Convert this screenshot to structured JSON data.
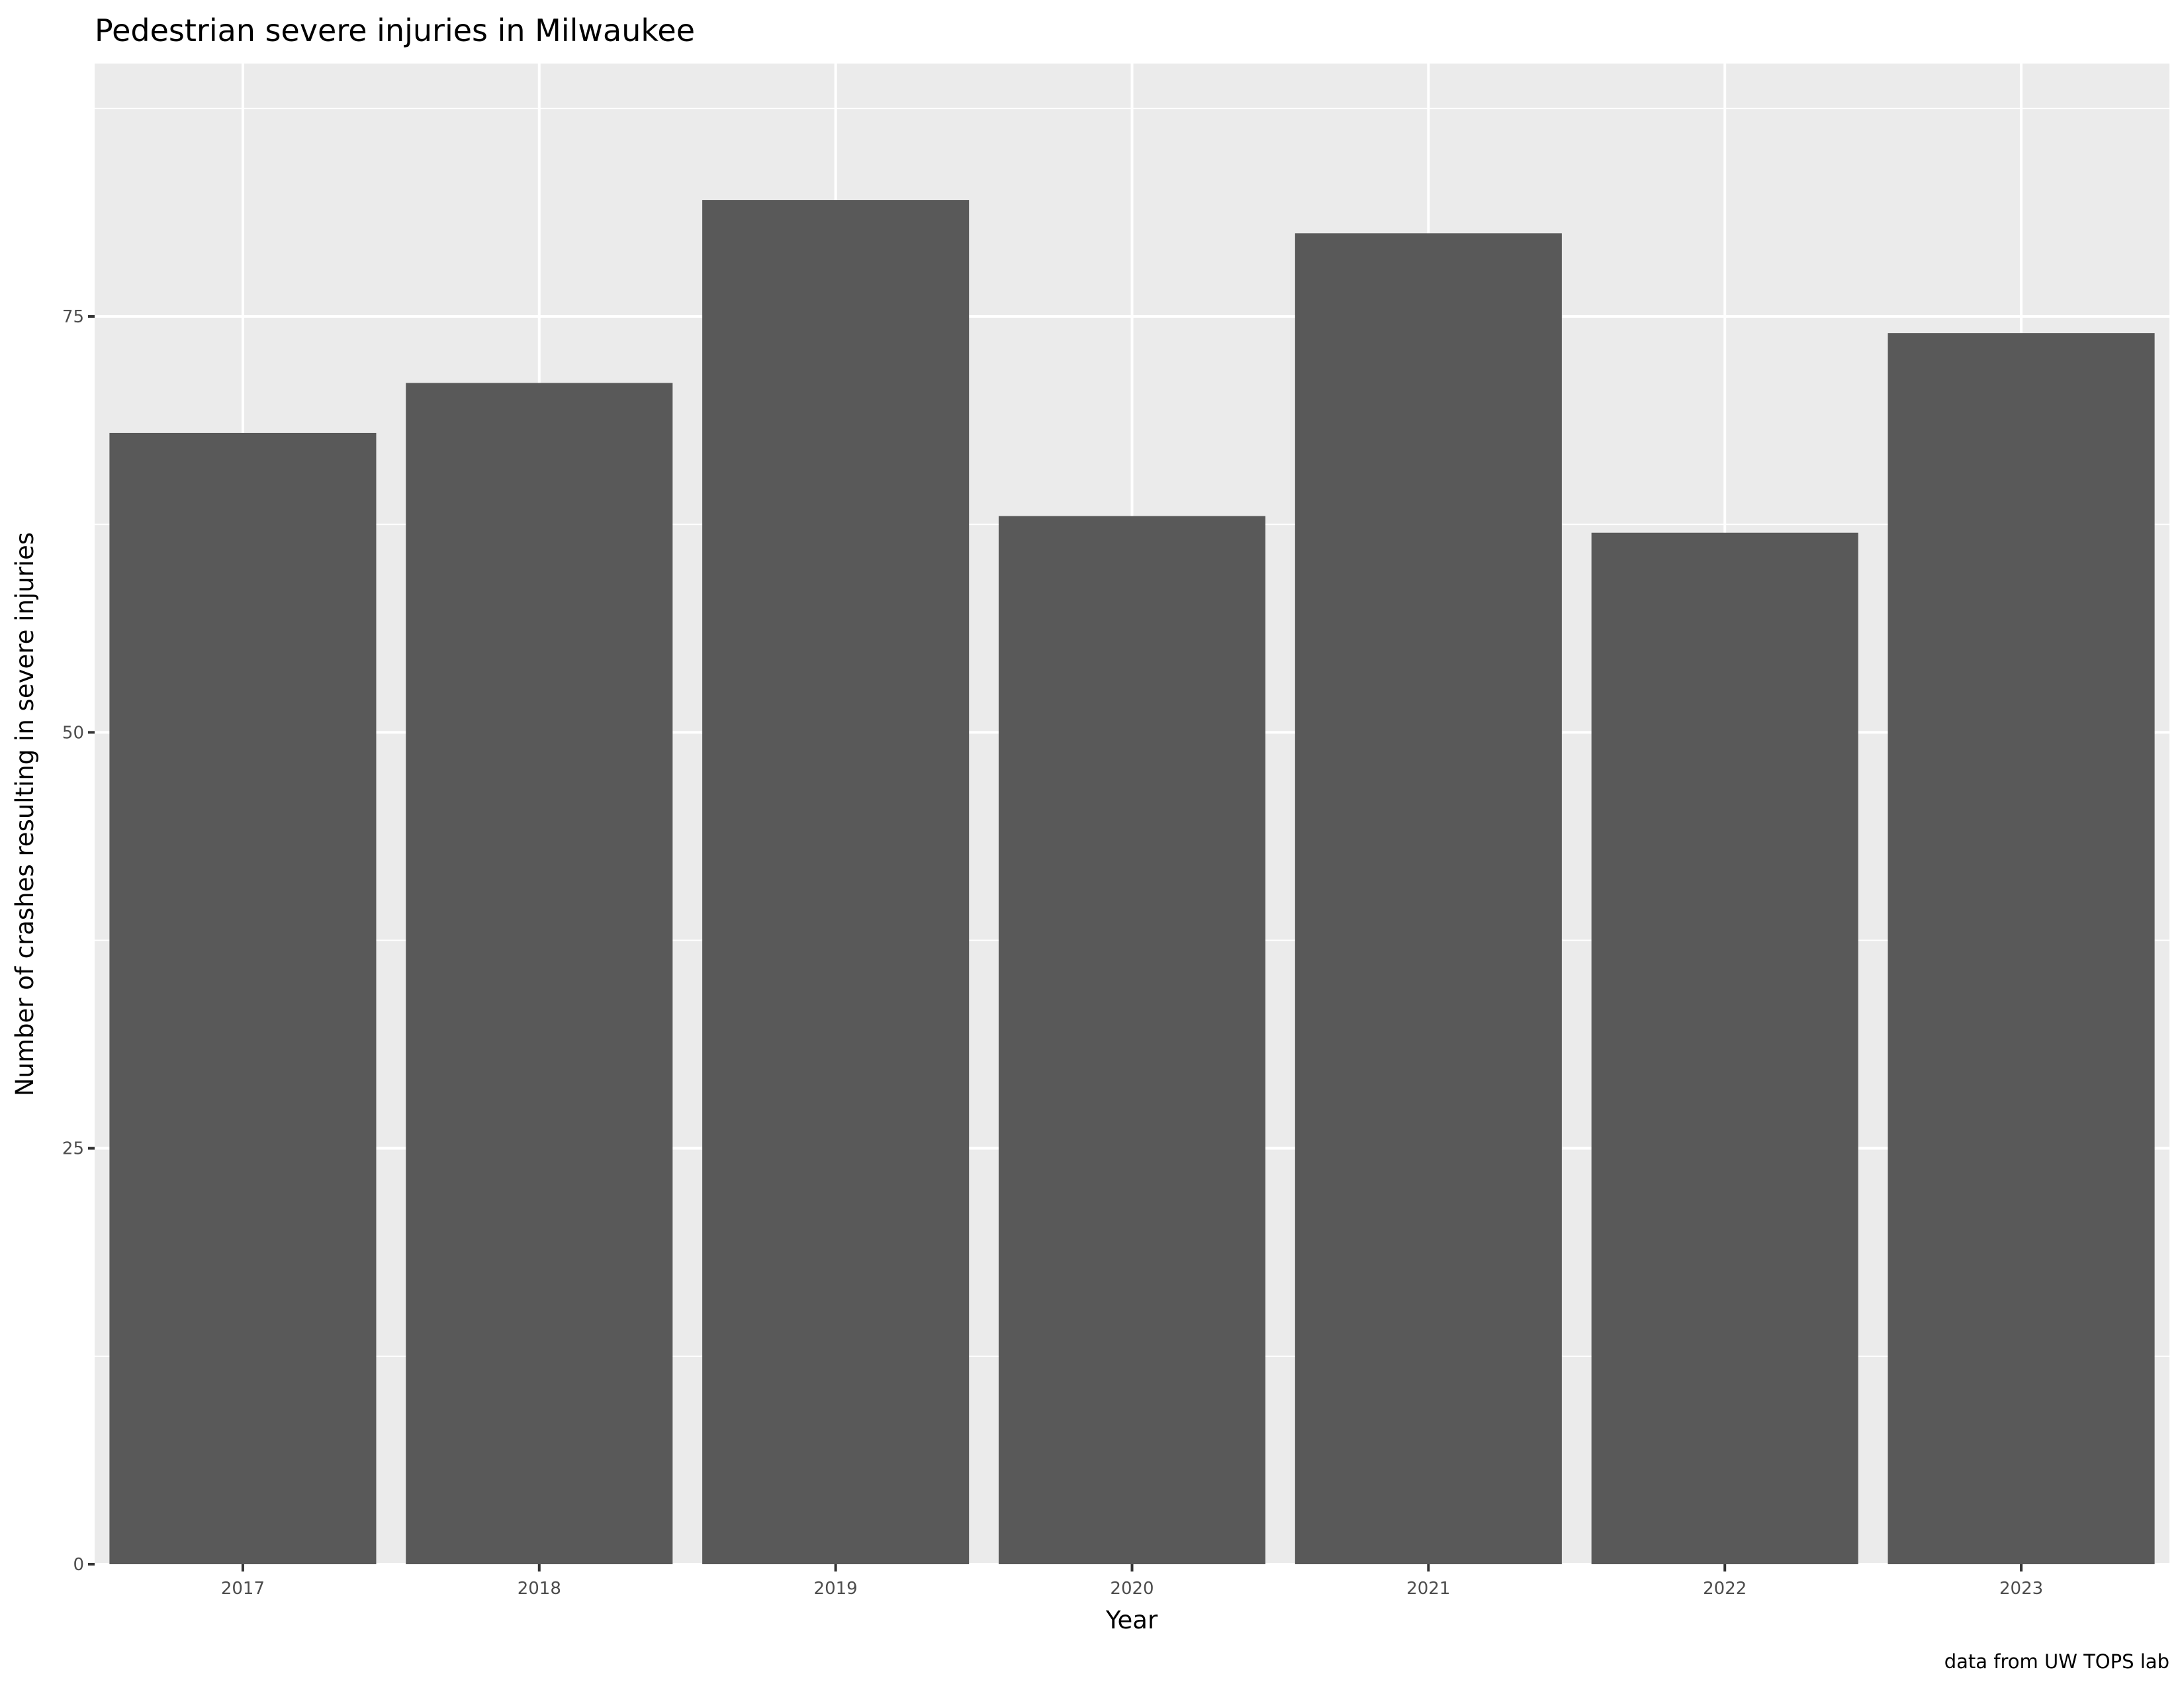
{
  "chart_data": {
    "type": "bar",
    "title": "Pedestrian severe injuries in Milwaukee",
    "xlabel": "Year",
    "ylabel": "Number of crashes resulting in severe injuries",
    "caption": "data from UW TOPS lab",
    "categories": [
      "2017",
      "2018",
      "2019",
      "2020",
      "2021",
      "2022",
      "2023"
    ],
    "values": [
      68,
      71,
      82,
      63,
      80,
      62,
      74
    ],
    "ylim": [
      0,
      90.2
    ],
    "yticks": [
      0,
      25,
      50,
      75
    ],
    "ytick_labels": [
      "0",
      "25",
      "50",
      "75"
    ],
    "grid": true,
    "colors": {
      "bar": "#595959",
      "panel": "#EBEBEB",
      "grid": "#FFFFFF"
    }
  }
}
